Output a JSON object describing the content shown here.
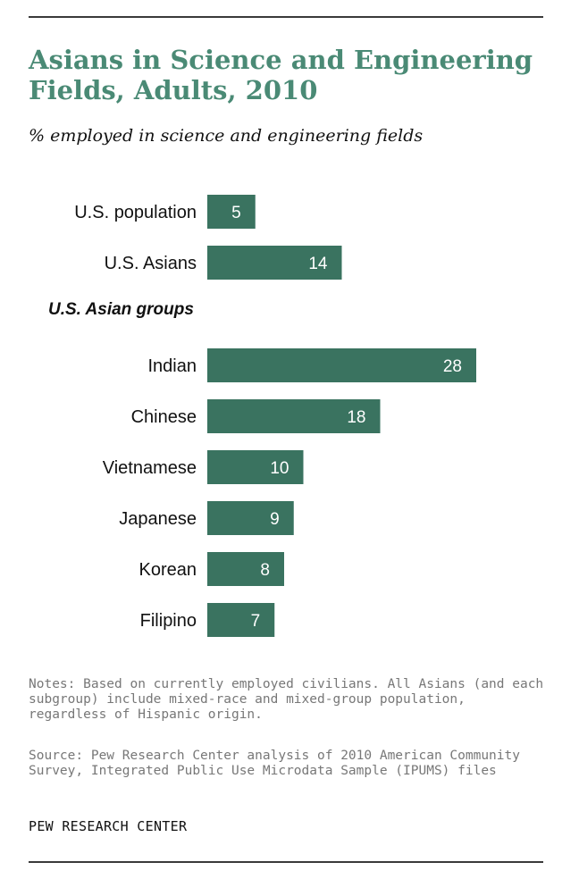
{
  "title": "Asians in Science and Engineering Fields, Adults, 2010",
  "subtitle": "% employed in science and engineering fields",
  "group_label": "U.S. Asian groups",
  "notes": "Notes: Based on currently employed civilians. All Asians (and each subgroup) include mixed-race and mixed-group population, regardless of Hispanic origin.",
  "source": "Source: Pew Research Center analysis of 2010 American Community Survey, Integrated Public Use Microdata Sample (IPUMS) files",
  "brand": "PEW RESEARCH CENTER",
  "colors": {
    "bar": "#3a7360",
    "title": "#4a8a75"
  },
  "chart_data": {
    "type": "bar",
    "orientation": "horizontal",
    "title": "Asians in Science and Engineering Fields, Adults, 2010",
    "subtitle": "% employed in science and engineering fields",
    "categories": [
      "U.S. population",
      "U.S. Asians",
      "Indian",
      "Chinese",
      "Vietnamese",
      "Japanese",
      "Korean",
      "Filipino"
    ],
    "values": [
      5,
      14,
      28,
      18,
      10,
      9,
      8,
      7
    ],
    "xlim": [
      0,
      28
    ],
    "grid": false,
    "data_labels": true
  }
}
